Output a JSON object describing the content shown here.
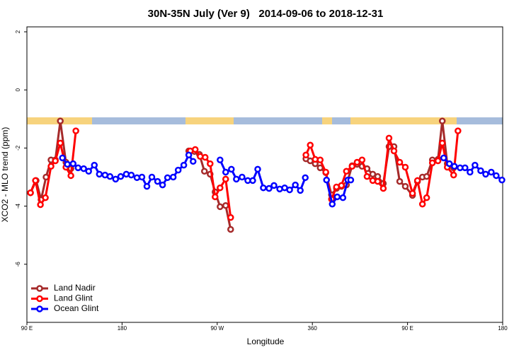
{
  "chart_data": {
    "type": "line",
    "title": "30N-35N July (Ver 9)   2014-09-06 to 2018-12-31",
    "x_label": "Longitude",
    "y_label": "XCO2 - MLO trend (ppm)",
    "xlim": [
      90,
      540
    ],
    "ylim": [
      -8,
      2.17
    ],
    "xticks": [
      {
        "value": 90,
        "label": "90 E"
      },
      180,
      {
        "value": 270,
        "label": "90 W"
      },
      360,
      {
        "value": 450,
        "label": "90 E"
      },
      {
        "value": 540,
        "label": "180"
      }
    ],
    "yticks": [
      -6,
      -4,
      -2,
      0,
      2
    ],
    "legend": "bottomleft",
    "series": [
      {
        "name": "Land Nadir",
        "color": "#a52a2a",
        "x": [
          93.4,
          98.7,
          103.4,
          108.1,
          112.8,
          116.9,
          121.6,
          126.9,
          131.6,
          140,
          243.1,
          248.5,
          253.2,
          257.9,
          263.3,
          268.0,
          272.7,
          278.0,
          282.7,
          355,
          353.9,
          358.0,
          362.7,
          367.4,
          372.7,
          378.1,
          382.8,
          387.5,
          392.2,
          397.6,
          402.3,
          407.0,
          411.7,
          417.1,
          421.8,
          427.1,
          432.5,
          437.2,
          442.6,
          447.9,
          454.7,
          459.4,
          464.1,
          468.1,
          473.5,
          478.8,
          482.9,
          487.6,
          493.6
        ],
        "values": [
          -3.54,
          -3.12,
          -3.78,
          -3.0,
          -2.41,
          -2.41,
          -1.07,
          -2.49,
          -2.71,
          null,
          -2.1,
          -2.12,
          -2.22,
          -2.8,
          -2.9,
          -3.51,
          -4.02,
          -3.98,
          -4.8,
          null,
          -2.37,
          -2.44,
          -2.54,
          -2.68,
          -2.85,
          -3.61,
          -3.39,
          -3.32,
          -3.27,
          -2.61,
          -2.56,
          -2.63,
          -2.71,
          -2.9,
          -2.98,
          -3.22,
          -1.95,
          -1.95,
          -3.15,
          -3.32,
          -3.63,
          -3.15,
          -3.0,
          -2.98,
          -2.41,
          -2.39,
          -1.07,
          -2.54,
          -2.68
        ]
      },
      {
        "name": "Land Glint",
        "color": "#ff0000",
        "x": [
          93.4,
          98.1,
          102.8,
          107.5,
          112.8,
          116.9,
          121.6,
          126.9,
          131.6,
          136.3,
          140,
          244.5,
          249.2,
          253.9,
          258.6,
          263.3,
          268.0,
          272.7,
          278.0,
          282.7,
          355,
          353.9,
          358.0,
          362.7,
          367.4,
          372.7,
          378.1,
          382.8,
          387.5,
          392.2,
          397.6,
          402.3,
          407.0,
          411.7,
          417.1,
          421.8,
          427.1,
          432.5,
          437.2,
          442.6,
          447.9,
          454.7,
          459.4,
          464.1,
          468.1,
          473.5,
          478.8,
          482.9,
          487.6,
          493.6,
          497.7
        ],
        "values": [
          -3.54,
          -3.12,
          -3.95,
          -3.71,
          -2.63,
          -2.44,
          -1.83,
          -2.66,
          -2.95,
          -1.41,
          null,
          -2.1,
          -2.05,
          -2.29,
          -2.32,
          -2.54,
          -3.68,
          -3.37,
          -3.07,
          -4.39,
          null,
          -2.24,
          -1.9,
          -2.39,
          -2.41,
          -2.83,
          -3.76,
          -3.34,
          -3.29,
          -2.8,
          -2.63,
          -2.49,
          -2.41,
          -2.98,
          -3.12,
          -3.15,
          -3.39,
          -1.66,
          -2.1,
          -2.49,
          -2.66,
          -3.56,
          -3.12,
          -3.93,
          -3.71,
          -2.51,
          -2.44,
          -1.83,
          -2.66,
          -2.93,
          -1.41
        ]
      },
      {
        "name": "Ocean Glint",
        "color": "#0000ff",
        "x": [
          123.6,
          128.3,
          133.7,
          138.4,
          143.7,
          148.4,
          153.8,
          158.5,
          163.9,
          168.6,
          173.9,
          178.7,
          184.0,
          188.7,
          194.1,
          198.8,
          203.5,
          208.2,
          213.6,
          218.3,
          223.0,
          228.4,
          233.1,
          238.4,
          243.1,
          247.2,
          250,
          272.7,
          278.0,
          283.4,
          288.1,
          293.5,
          298.9,
          303.6,
          308.3,
          313.6,
          319.0,
          323.7,
          329.1,
          333.8,
          338.5,
          343.9,
          348.6,
          353.3,
          360,
          373.4,
          378.8,
          383.5,
          388.9,
          393.6,
          396.3,
          440,
          484.2,
          489.6,
          494.3,
          499.7,
          504.4,
          509.1,
          513.8,
          519.2,
          523.9,
          529.2,
          533.9,
          539.3
        ],
        "values": [
          -2.34,
          -2.56,
          -2.54,
          -2.68,
          -2.71,
          -2.8,
          -2.59,
          -2.9,
          -2.93,
          -2.98,
          -3.07,
          -2.98,
          -2.9,
          -2.93,
          -3.02,
          -3.0,
          -3.32,
          -3.0,
          -3.15,
          -3.27,
          -3.02,
          -3.0,
          -2.76,
          -2.59,
          -2.24,
          -2.46,
          null,
          -2.41,
          -2.83,
          -2.73,
          -3.07,
          -3.0,
          -3.12,
          -3.12,
          -2.73,
          -3.37,
          -3.39,
          -3.29,
          -3.41,
          -3.37,
          -3.44,
          -3.27,
          -3.46,
          -3.02,
          null,
          -3.1,
          -3.93,
          -3.68,
          -3.71,
          -3.1,
          -3.1,
          null,
          -2.34,
          -2.54,
          -2.63,
          -2.68,
          -2.68,
          -2.83,
          -2.59,
          -2.78,
          -2.9,
          -2.83,
          -2.95,
          -3.1
        ]
      }
    ]
  }
}
